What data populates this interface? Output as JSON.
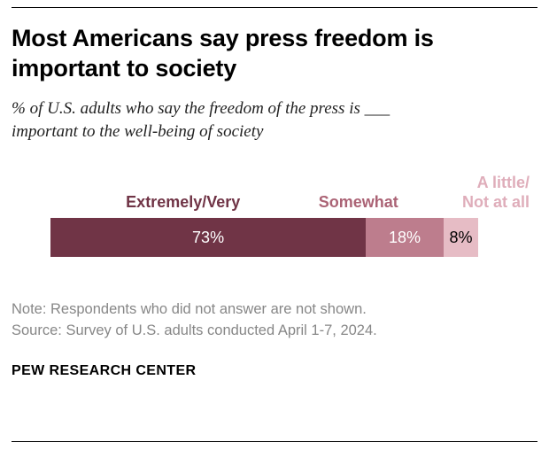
{
  "header": {
    "title": "Most Americans say press freedom is\nimportant to society",
    "subtitle": "% of U.S. adults who say the freedom of the press is ___\nimportant to the well-being of society"
  },
  "chart_data": {
    "type": "bar",
    "orientation": "horizontal",
    "stacked": true,
    "categories": [
      "Extremely/Very",
      "Somewhat",
      "A little/\nNot at all"
    ],
    "values": [
      73,
      18,
      8
    ],
    "value_labels": [
      "73%",
      "18%",
      "8%"
    ],
    "segment_colors": [
      "#703446",
      "#bd7d8d",
      "#e6bcc5"
    ],
    "category_label_colors": [
      "#703446",
      "#ab6375",
      "#dfadba"
    ],
    "value_text_colors": [
      "#ffffff",
      "#ffffff",
      "#000000"
    ],
    "xlim": [
      0,
      100
    ],
    "grid": false,
    "legend_position": "above-bar"
  },
  "footer": {
    "notes": "Note: Respondents who did not answer are not shown.\nSource: Survey of U.S. adults conducted April 1-7, 2024.",
    "brand": "PEW RESEARCH CENTER"
  }
}
